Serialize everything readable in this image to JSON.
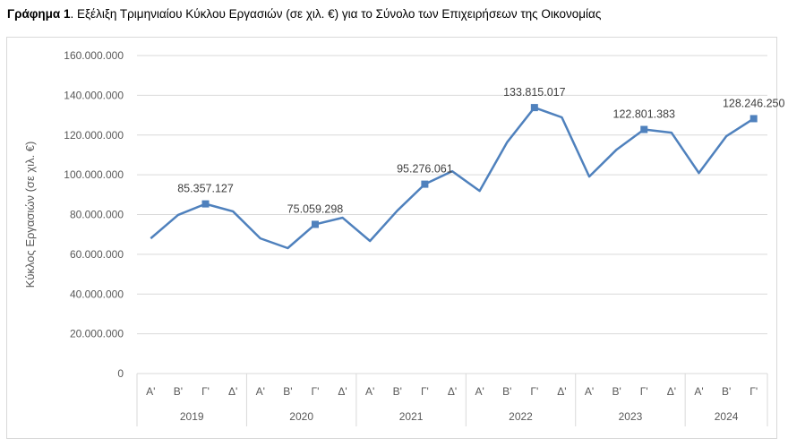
{
  "title_bold": "Γράφημα 1",
  "title_rest": ". Εξέλιξη Τριμηνιαίου Κύκλου Εργασιών (σε χιλ. €) για το Σύνολο των Επιχειρήσεων της Οικονομίας",
  "chart_data": {
    "type": "line",
    "title": "Γράφημα 1. Εξέλιξη Τριμηνιαίου Κύκλου Εργασιών (σε χιλ. €) για το Σύνολο των Επιχειρήσεων της Οικονομίας",
    "ylabel": "Κύκλος Εργασιών (σε χιλ. €)",
    "xlabel": "",
    "ylim": [
      0,
      160000000
    ],
    "yticks": [
      0,
      20000000,
      40000000,
      60000000,
      80000000,
      100000000,
      120000000,
      140000000,
      160000000
    ],
    "ytick_labels": [
      "0",
      "20.000.000",
      "40.000.000",
      "60.000.000",
      "80.000.000",
      "100.000.000",
      "120.000.000",
      "140.000.000",
      "160.000.000"
    ],
    "grid": true,
    "years": [
      "2019",
      "2020",
      "2021",
      "2022",
      "2023",
      "2024"
    ],
    "quarters": [
      "Α'",
      "Β'",
      "Γ'",
      "Δ'"
    ],
    "categories": [
      "Α'",
      "Β'",
      "Γ'",
      "Δ'",
      "Α'",
      "Β'",
      "Γ'",
      "Δ'",
      "Α'",
      "Β'",
      "Γ'",
      "Δ'",
      "Α'",
      "Β'",
      "Γ'",
      "Δ'",
      "Α'",
      "Β'",
      "Γ'",
      "Δ'",
      "Α'",
      "Β'",
      "Γ'"
    ],
    "category_years": [
      "2019",
      "2019",
      "2019",
      "2019",
      "2020",
      "2020",
      "2020",
      "2020",
      "2021",
      "2021",
      "2021",
      "2021",
      "2022",
      "2022",
      "2022",
      "2022",
      "2023",
      "2023",
      "2023",
      "2023",
      "2024",
      "2024",
      "2024"
    ],
    "series": [
      {
        "color": "#4f81bd",
        "values": [
          68000000,
          79800000,
          85357127,
          81600000,
          68000000,
          63100000,
          75059298,
          78400000,
          66700000,
          82000000,
          95276061,
          101800000,
          91900000,
          116300000,
          133815017,
          128900000,
          99100000,
          112700000,
          122801383,
          121200000,
          100900000,
          119400000,
          128246250
        ]
      }
    ],
    "data_labels": [
      {
        "index": 2,
        "text": "85.357.127"
      },
      {
        "index": 6,
        "text": "75.059.298"
      },
      {
        "index": 10,
        "text": "95.276.061"
      },
      {
        "index": 14,
        "text": "133.815.017"
      },
      {
        "index": 18,
        "text": "122.801.383"
      },
      {
        "index": 22,
        "text": "128.246.250"
      }
    ]
  }
}
